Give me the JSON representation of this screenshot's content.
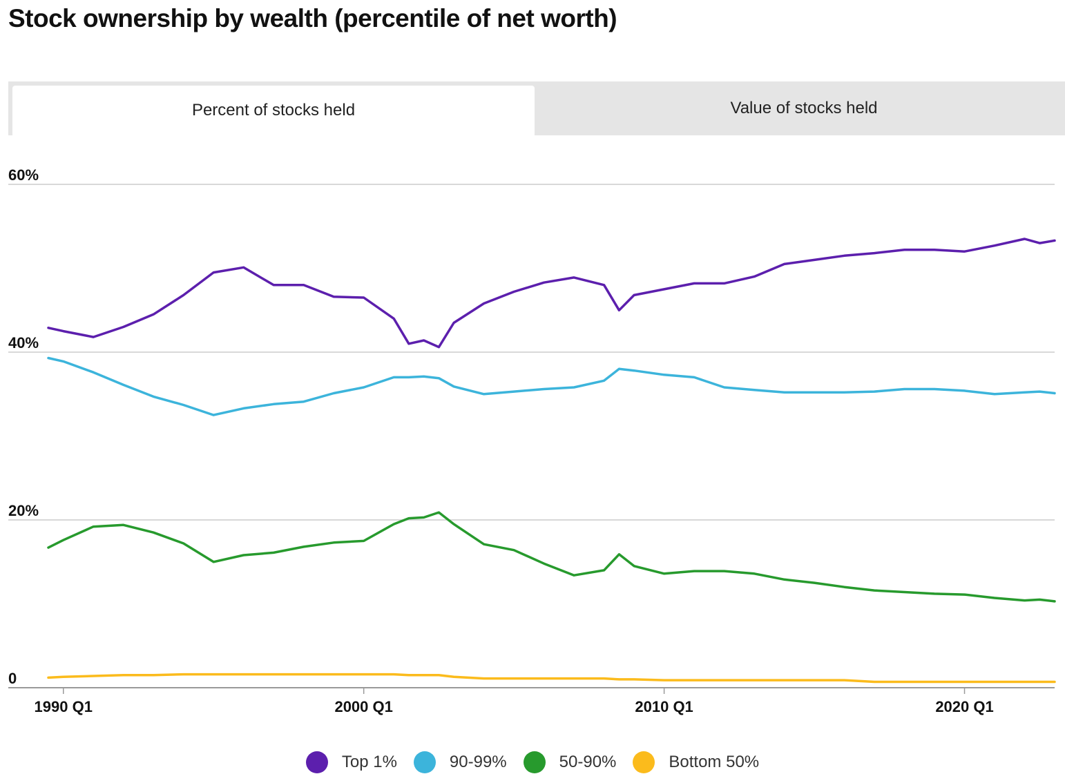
{
  "title": "Stock ownership by wealth (percentile of net worth)",
  "tabs": [
    {
      "label": "Percent of stocks held",
      "active": true
    },
    {
      "label": "Value of stocks held",
      "active": false
    }
  ],
  "colors": {
    "top1": "#5c1fad",
    "p90_99": "#3cb4db",
    "p50_90": "#279a2d",
    "bottom50": "#fbbb1c",
    "grid": "#cccccc",
    "axis": "#999999"
  },
  "chart_data": {
    "type": "line",
    "title": "Stock ownership by wealth (percentile of net worth)",
    "xlabel": "",
    "ylabel": "",
    "x_ticks": [
      "1990 Q1",
      "2000 Q1",
      "2010 Q1",
      "2020 Q1"
    ],
    "y_ticks": [
      "0",
      "20%",
      "40%",
      "60%"
    ],
    "y_tick_values": [
      0,
      20,
      40,
      60
    ],
    "xlim": [
      "1989 Q3",
      "2023 Q1"
    ],
    "ylim": [
      0,
      60
    ],
    "grid": true,
    "legend_position": "bottom",
    "x": [
      "1989 Q3",
      "1990 Q1",
      "1991 Q1",
      "1992 Q1",
      "1993 Q1",
      "1994 Q1",
      "1995 Q1",
      "1996 Q1",
      "1997 Q1",
      "1998 Q1",
      "1999 Q1",
      "2000 Q1",
      "2001 Q1",
      "2001 Q3",
      "2002 Q1",
      "2002 Q3",
      "2003 Q1",
      "2004 Q1",
      "2005 Q1",
      "2006 Q1",
      "2007 Q1",
      "2008 Q1",
      "2008 Q3",
      "2009 Q1",
      "2010 Q1",
      "2011 Q1",
      "2012 Q1",
      "2013 Q1",
      "2014 Q1",
      "2015 Q1",
      "2016 Q1",
      "2017 Q1",
      "2018 Q1",
      "2019 Q1",
      "2020 Q1",
      "2021 Q1",
      "2022 Q1",
      "2022 Q3",
      "2023 Q1"
    ],
    "series": [
      {
        "name": "Top 1%",
        "color_key": "top1",
        "values": [
          42.9,
          42.5,
          41.8,
          43.0,
          44.5,
          46.8,
          49.5,
          50.1,
          48.0,
          48.0,
          46.6,
          46.5,
          44.0,
          41.0,
          41.4,
          40.6,
          43.5,
          45.8,
          47.2,
          48.3,
          48.9,
          48.0,
          45.0,
          46.8,
          47.5,
          48.2,
          48.2,
          49.0,
          50.5,
          51.0,
          51.5,
          51.8,
          52.2,
          52.2,
          52.0,
          52.7,
          53.5,
          53.0,
          53.3
        ]
      },
      {
        "name": "90-99%",
        "color_key": "p90_99",
        "values": [
          39.3,
          38.9,
          37.6,
          36.1,
          34.7,
          33.7,
          32.5,
          33.3,
          33.8,
          34.1,
          35.1,
          35.8,
          37.0,
          37.0,
          37.1,
          36.9,
          35.9,
          35.0,
          35.3,
          35.6,
          35.8,
          36.6,
          38.0,
          37.8,
          37.3,
          37.0,
          35.8,
          35.5,
          35.2,
          35.2,
          35.2,
          35.3,
          35.6,
          35.6,
          35.4,
          35.0,
          35.2,
          35.3,
          35.1
        ]
      },
      {
        "name": "50-90%",
        "color_key": "p50_90",
        "values": [
          16.7,
          17.6,
          19.2,
          19.4,
          18.5,
          17.2,
          15.0,
          15.8,
          16.1,
          16.8,
          17.3,
          17.5,
          19.5,
          20.2,
          20.3,
          20.9,
          19.5,
          17.1,
          16.4,
          14.8,
          13.4,
          14.0,
          15.9,
          14.5,
          13.6,
          13.9,
          13.9,
          13.6,
          12.9,
          12.5,
          12.0,
          11.6,
          11.4,
          11.2,
          11.1,
          10.7,
          10.4,
          10.5,
          10.3
        ]
      },
      {
        "name": "Bottom 50%",
        "color_key": "bottom50",
        "values": [
          1.2,
          1.3,
          1.4,
          1.5,
          1.5,
          1.6,
          1.6,
          1.6,
          1.6,
          1.6,
          1.6,
          1.6,
          1.6,
          1.5,
          1.5,
          1.5,
          1.3,
          1.1,
          1.1,
          1.1,
          1.1,
          1.1,
          1.0,
          1.0,
          0.9,
          0.9,
          0.9,
          0.9,
          0.9,
          0.9,
          0.9,
          0.7,
          0.7,
          0.7,
          0.7,
          0.7,
          0.7,
          0.7,
          0.7
        ]
      }
    ]
  }
}
